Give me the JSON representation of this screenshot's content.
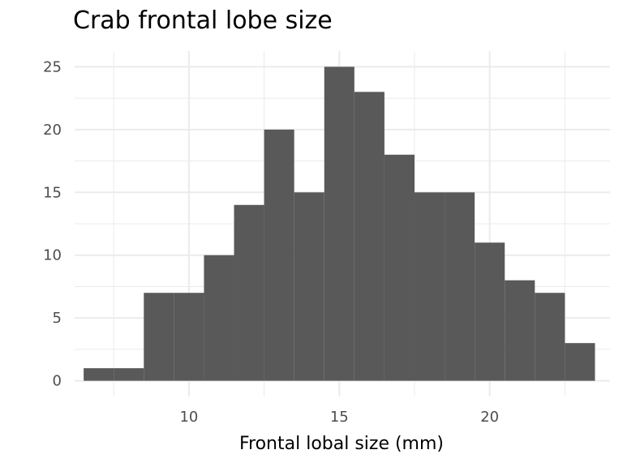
{
  "chart_data": {
    "type": "bar",
    "title": "Crab frontal lobe size",
    "xlabel": "Frontal lobal size (mm)",
    "ylabel": "",
    "bar_color": "#595959",
    "grid": true,
    "xlim": [
      6.2,
      24.0
    ],
    "ylim": [
      -1.25,
      26.25
    ],
    "x_ticks": [
      10,
      15,
      20
    ],
    "y_ticks": [
      0,
      5,
      10,
      15,
      20,
      25
    ],
    "bins": [
      {
        "x0": 6.5,
        "x1": 7.5,
        "count": 1
      },
      {
        "x0": 7.5,
        "x1": 8.5,
        "count": 1
      },
      {
        "x0": 8.5,
        "x1": 9.5,
        "count": 7
      },
      {
        "x0": 9.5,
        "x1": 10.5,
        "count": 7
      },
      {
        "x0": 10.5,
        "x1": 11.5,
        "count": 10
      },
      {
        "x0": 11.5,
        "x1": 12.5,
        "count": 14
      },
      {
        "x0": 12.5,
        "x1": 13.5,
        "count": 20
      },
      {
        "x0": 13.5,
        "x1": 14.5,
        "count": 15
      },
      {
        "x0": 14.5,
        "x1": 15.5,
        "count": 25
      },
      {
        "x0": 15.5,
        "x1": 16.5,
        "count": 23
      },
      {
        "x0": 16.5,
        "x1": 17.5,
        "count": 18
      },
      {
        "x0": 17.5,
        "x1": 18.5,
        "count": 15
      },
      {
        "x0": 18.5,
        "x1": 19.5,
        "count": 15
      },
      {
        "x0": 19.5,
        "x1": 20.5,
        "count": 11
      },
      {
        "x0": 20.5,
        "x1": 21.5,
        "count": 8
      },
      {
        "x0": 21.5,
        "x1": 22.5,
        "count": 7
      },
      {
        "x0": 22.5,
        "x1": 23.5,
        "count": 3
      }
    ]
  }
}
